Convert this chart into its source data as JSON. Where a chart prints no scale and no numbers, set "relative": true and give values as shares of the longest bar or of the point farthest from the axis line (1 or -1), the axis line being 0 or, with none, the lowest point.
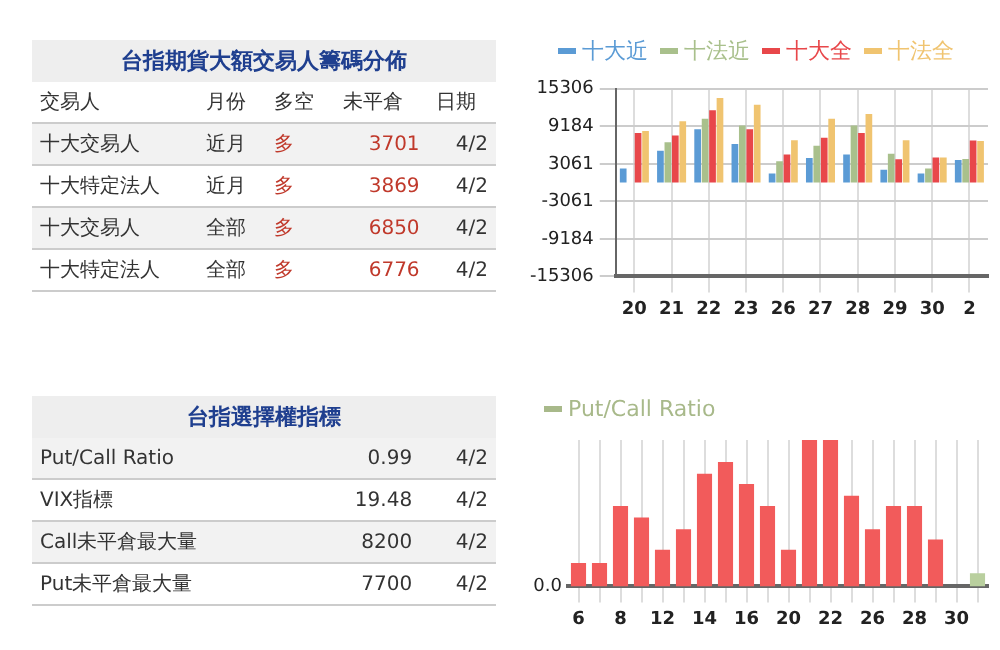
{
  "chart_data": [
    {
      "type": "other",
      "title": "台指期貨大額交易人籌碼分佈",
      "ylabel": "交易人",
      "categories": [
        "月份",
        "多空",
        "未平倉",
        "日期"
      ],
      "y_categories": [
        "十大交易人",
        "十大特定法人",
        "十大交易人",
        "十大特定法人"
      ],
      "cell_labels": [
        [
          "近月",
          "多",
          "3701",
          "4/2"
        ],
        [
          "近月",
          "多",
          "3869",
          "4/2"
        ],
        [
          "全部",
          "多",
          "6850",
          "4/2"
        ],
        [
          "全部",
          "多",
          "6776",
          "4/2"
        ]
      ]
    },
    {
      "type": "bar",
      "categories": [
        "20",
        "21",
        "22",
        "23",
        "26",
        "27",
        "28",
        "29",
        "30",
        "2"
      ],
      "series": [
        {
          "name": "十大近",
          "color": "#5b9bd5",
          "values": [
            2300,
            5200,
            8700,
            6300,
            1500,
            4000,
            4600,
            2100,
            1500,
            3701
          ]
        },
        {
          "name": "十法近",
          "color": "#a9c08c",
          "values": [
            null,
            6600,
            10400,
            9300,
            3500,
            6000,
            9300,
            4700,
            2300,
            3869
          ]
        },
        {
          "name": "十大全",
          "color": "#e8474a",
          "values": [
            8100,
            7700,
            11800,
            8700,
            4600,
            7300,
            8100,
            3800,
            4100,
            6850
          ]
        },
        {
          "name": "十法全",
          "color": "#f0c470",
          "values": [
            8400,
            10000,
            13800,
            12700,
            6900,
            10400,
            11200,
            6900,
            4100,
            6776
          ]
        }
      ],
      "ylim": [
        -15306,
        15306
      ],
      "yticks": [
        -15306,
        -9184,
        -3061,
        3061,
        9184,
        15306
      ],
      "grid": true,
      "legend": "top"
    },
    {
      "type": "other",
      "title": "台指選擇權指標",
      "y_categories": [
        "Put/Call Ratio",
        "VIX指標",
        "Call未平倉最大量",
        "Put未平倉最大量"
      ],
      "cell_labels": [
        [
          "0.99",
          "4/2"
        ],
        [
          "19.48",
          "4/2"
        ],
        [
          "8200",
          "4/2"
        ],
        [
          "7700",
          "4/2"
        ]
      ]
    },
    {
      "type": "bar",
      "relative": true,
      "categories": [
        "6",
        null,
        "8",
        null,
        "12",
        null,
        "14",
        null,
        "16",
        null,
        "20",
        null,
        "22",
        null,
        "26",
        null,
        "28",
        null,
        "30",
        null
      ],
      "series": [
        {
          "name": "Put/Call Ratio",
          "color": "#a8b98a",
          "values": [
            0.16,
            0.16,
            0.55,
            0.47,
            0.25,
            0.39,
            0.77,
            0.85,
            0.7,
            0.55,
            0.25,
            1,
            1,
            0.62,
            0.39,
            0.55,
            0.55,
            0.32,
            null,
            0.09
          ],
          "colors": [
            "#f25b5b",
            "#f25b5b",
            "#f25b5b",
            "#f25b5b",
            "#f25b5b",
            "#f25b5b",
            "#f25b5b",
            "#f25b5b",
            "#f25b5b",
            "#f25b5b",
            "#f25b5b",
            "#f25b5b",
            "#f25b5b",
            "#f25b5b",
            "#f25b5b",
            "#f25b5b",
            "#f25b5b",
            "#f25b5b",
            "#f25b5b",
            "#b9cf9e"
          ]
        }
      ],
      "grid": "x",
      "legend": "top left",
      "annotations": [
        "0.0"
      ]
    }
  ]
}
